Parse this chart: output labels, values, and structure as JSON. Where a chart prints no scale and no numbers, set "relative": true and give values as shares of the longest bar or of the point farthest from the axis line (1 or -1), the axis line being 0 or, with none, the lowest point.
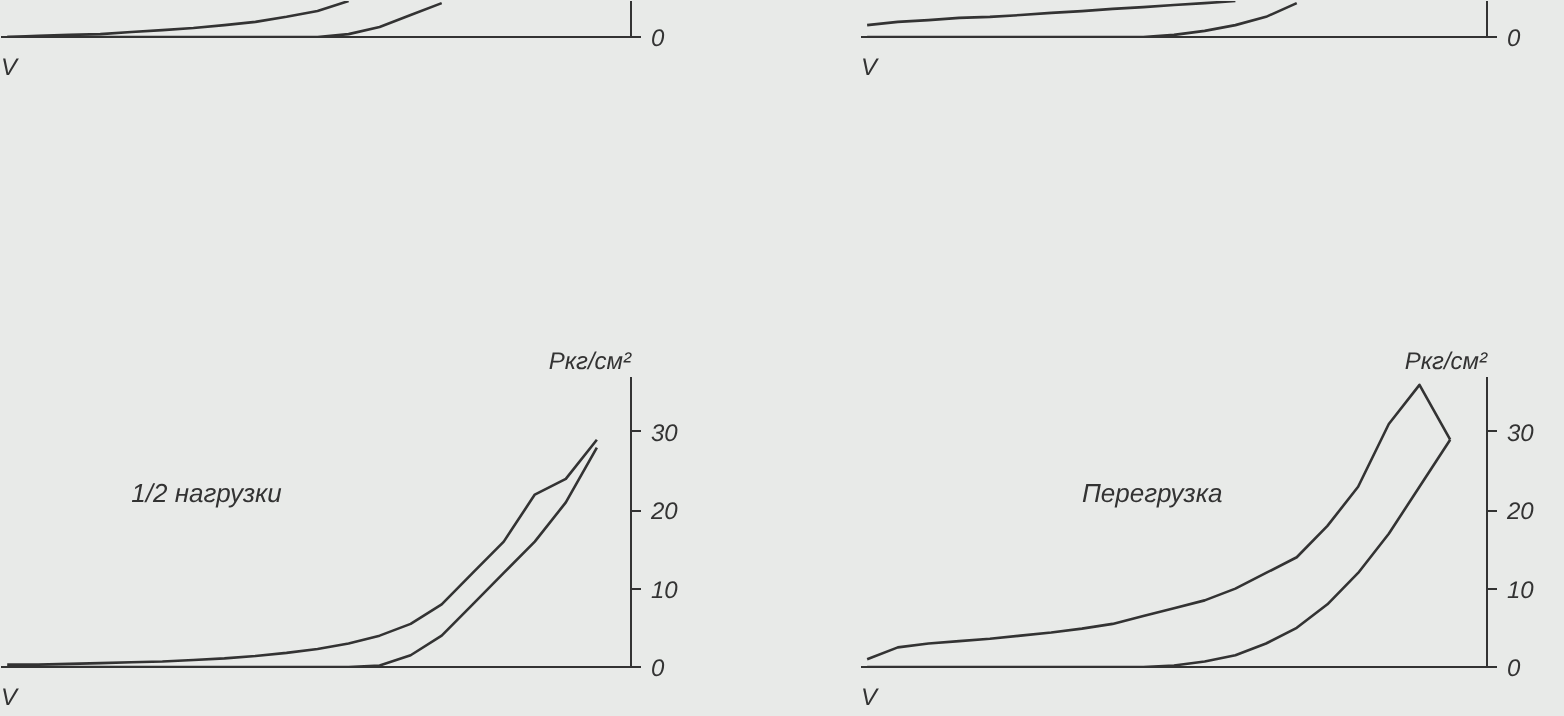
{
  "chart_data": [
    {
      "type": "line",
      "relative": true,
      "xlabel": "V",
      "annotations": [
        "0"
      ],
      "categories": [
        null,
        null,
        null,
        null,
        null,
        null,
        null,
        null,
        null,
        null,
        null,
        null,
        null,
        null,
        null,
        null,
        null,
        null,
        null,
        null
      ],
      "series": [
        {
          "color": "#333333",
          "values": [
            0,
            0.03,
            0.06,
            0.08,
            0.14,
            0.19,
            0.25,
            0.33,
            0.42,
            0.56,
            0.72,
            1.0,
            null,
            null,
            null,
            null,
            null,
            null,
            null,
            null
          ]
        },
        {
          "color": "#333333",
          "values": [
            0,
            0,
            0,
            0,
            0,
            0,
            0,
            0,
            0,
            0,
            0,
            0.08,
            0.28,
            0.61,
            0.94,
            null,
            null,
            null,
            null,
            null
          ]
        }
      ]
    },
    {
      "type": "line",
      "relative": true,
      "xlabel": "V",
      "annotations": [
        "0"
      ],
      "categories": [
        null,
        null,
        null,
        null,
        null,
        null,
        null,
        null,
        null,
        null,
        null,
        null,
        null,
        null,
        null,
        null,
        null,
        null,
        null,
        null
      ],
      "series": [
        {
          "color": "#333333",
          "values": [
            0.33,
            0.42,
            0.47,
            0.53,
            0.56,
            0.61,
            0.67,
            0.72,
            0.78,
            0.83,
            0.89,
            0.94,
            1.0,
            null,
            null,
            null,
            null,
            null,
            null,
            null
          ]
        },
        {
          "color": "#333333",
          "values": [
            0,
            0,
            0,
            0,
            0,
            0,
            0,
            0,
            0,
            0,
            0.06,
            0.17,
            0.33,
            0.56,
            0.94,
            null,
            null,
            null,
            null,
            null
          ]
        }
      ]
    },
    {
      "type": "line",
      "xlabel": "V",
      "ylabel": "Ркг/см²",
      "annotations": [
        "1/2 нагрузки"
      ],
      "ylim": [
        0,
        37
      ],
      "yticks": [
        0,
        10,
        20,
        30
      ],
      "categories": [
        null,
        null,
        null,
        null,
        null,
        null,
        null,
        null,
        null,
        null,
        null,
        null,
        null,
        null,
        null,
        null,
        null,
        null,
        null,
        null
      ],
      "series": [
        {
          "color": "#333333",
          "values": [
            0.3,
            0.3,
            0.4,
            0.5,
            0.6,
            0.7,
            0.9,
            1.1,
            1.4,
            1.8,
            2.3,
            3,
            4,
            5.5,
            8,
            12,
            16,
            22,
            24,
            29
          ]
        },
        {
          "color": "#333333",
          "values": [
            0,
            0,
            0,
            0,
            0,
            0,
            0,
            0,
            0,
            0,
            0,
            0,
            0.2,
            1.5,
            4,
            8,
            12,
            16,
            21,
            28
          ]
        }
      ]
    },
    {
      "type": "line",
      "xlabel": "V",
      "ylabel": "Ркг/см²",
      "annotations": [
        "Перегрузка"
      ],
      "ylim": [
        0,
        37
      ],
      "yticks": [
        0,
        10,
        20,
        30
      ],
      "categories": [
        null,
        null,
        null,
        null,
        null,
        null,
        null,
        null,
        null,
        null,
        null,
        null,
        null,
        null,
        null,
        null,
        null,
        null,
        null,
        null
      ],
      "series": [
        {
          "color": "#333333",
          "values": [
            1,
            2.5,
            3,
            3.3,
            3.6,
            4,
            4.4,
            4.9,
            5.5,
            6.5,
            7.5,
            8.5,
            10,
            12,
            14,
            18,
            23,
            31,
            36,
            29
          ]
        },
        {
          "color": "#333333",
          "values": [
            0,
            0,
            0,
            0,
            0,
            0,
            0,
            0,
            0,
            0,
            0.2,
            0.7,
            1.5,
            3,
            5,
            8,
            12,
            17,
            23,
            29
          ]
        }
      ]
    }
  ]
}
